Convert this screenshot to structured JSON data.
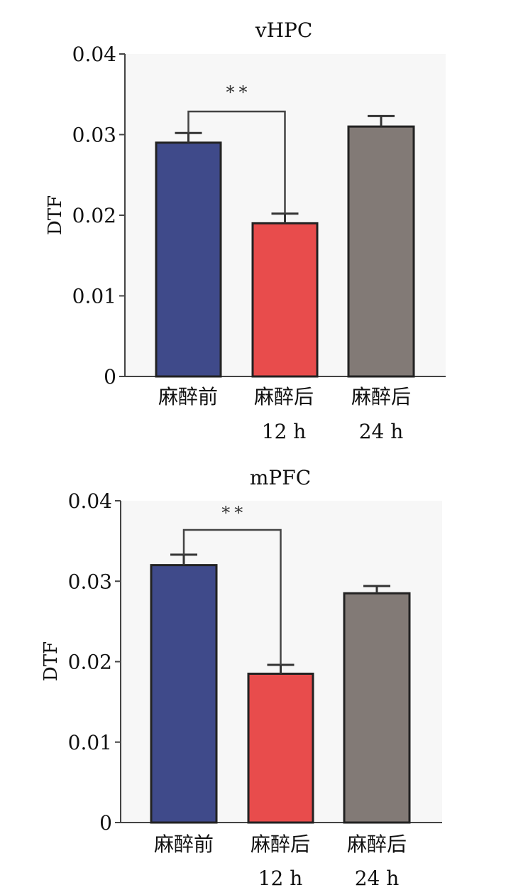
{
  "chart_data": [
    {
      "type": "bar",
      "title": "vHPC",
      "ylabel": "DTF",
      "xlabel": "",
      "ylim": [
        0,
        0.04
      ],
      "yticks": [
        "0",
        "0.01",
        "0.02",
        "0.03",
        "0.04"
      ],
      "categories": [
        {
          "line1": "麻醉前",
          "line2": ""
        },
        {
          "line1": "麻醉后",
          "line2": "12 h"
        },
        {
          "line1": "麻醉后",
          "line2": "24 h"
        }
      ],
      "values": [
        0.029,
        0.019,
        0.031
      ],
      "errors": [
        0.0012,
        0.0012,
        0.0013
      ],
      "colors": [
        "#3f4a8a",
        "#e84c4c",
        "#827a76"
      ],
      "significance": {
        "from": 0,
        "to": 1,
        "label": "**"
      }
    },
    {
      "type": "bar",
      "title": "mPFC",
      "ylabel": "DTF",
      "xlabel": "",
      "ylim": [
        0,
        0.04
      ],
      "yticks": [
        "0",
        "0.01",
        "0.02",
        "0.03",
        "0.04"
      ],
      "categories": [
        {
          "line1": "麻醉前",
          "line2": ""
        },
        {
          "line1": "麻醉后",
          "line2": "12 h"
        },
        {
          "line1": "麻醉后",
          "line2": "24 h"
        }
      ],
      "values": [
        0.032,
        0.0185,
        0.0285
      ],
      "errors": [
        0.0013,
        0.0011,
        0.0009
      ],
      "colors": [
        "#3f4a8a",
        "#e84c4c",
        "#827a76"
      ],
      "significance": {
        "from": 0,
        "to": 1,
        "label": "**"
      }
    }
  ]
}
